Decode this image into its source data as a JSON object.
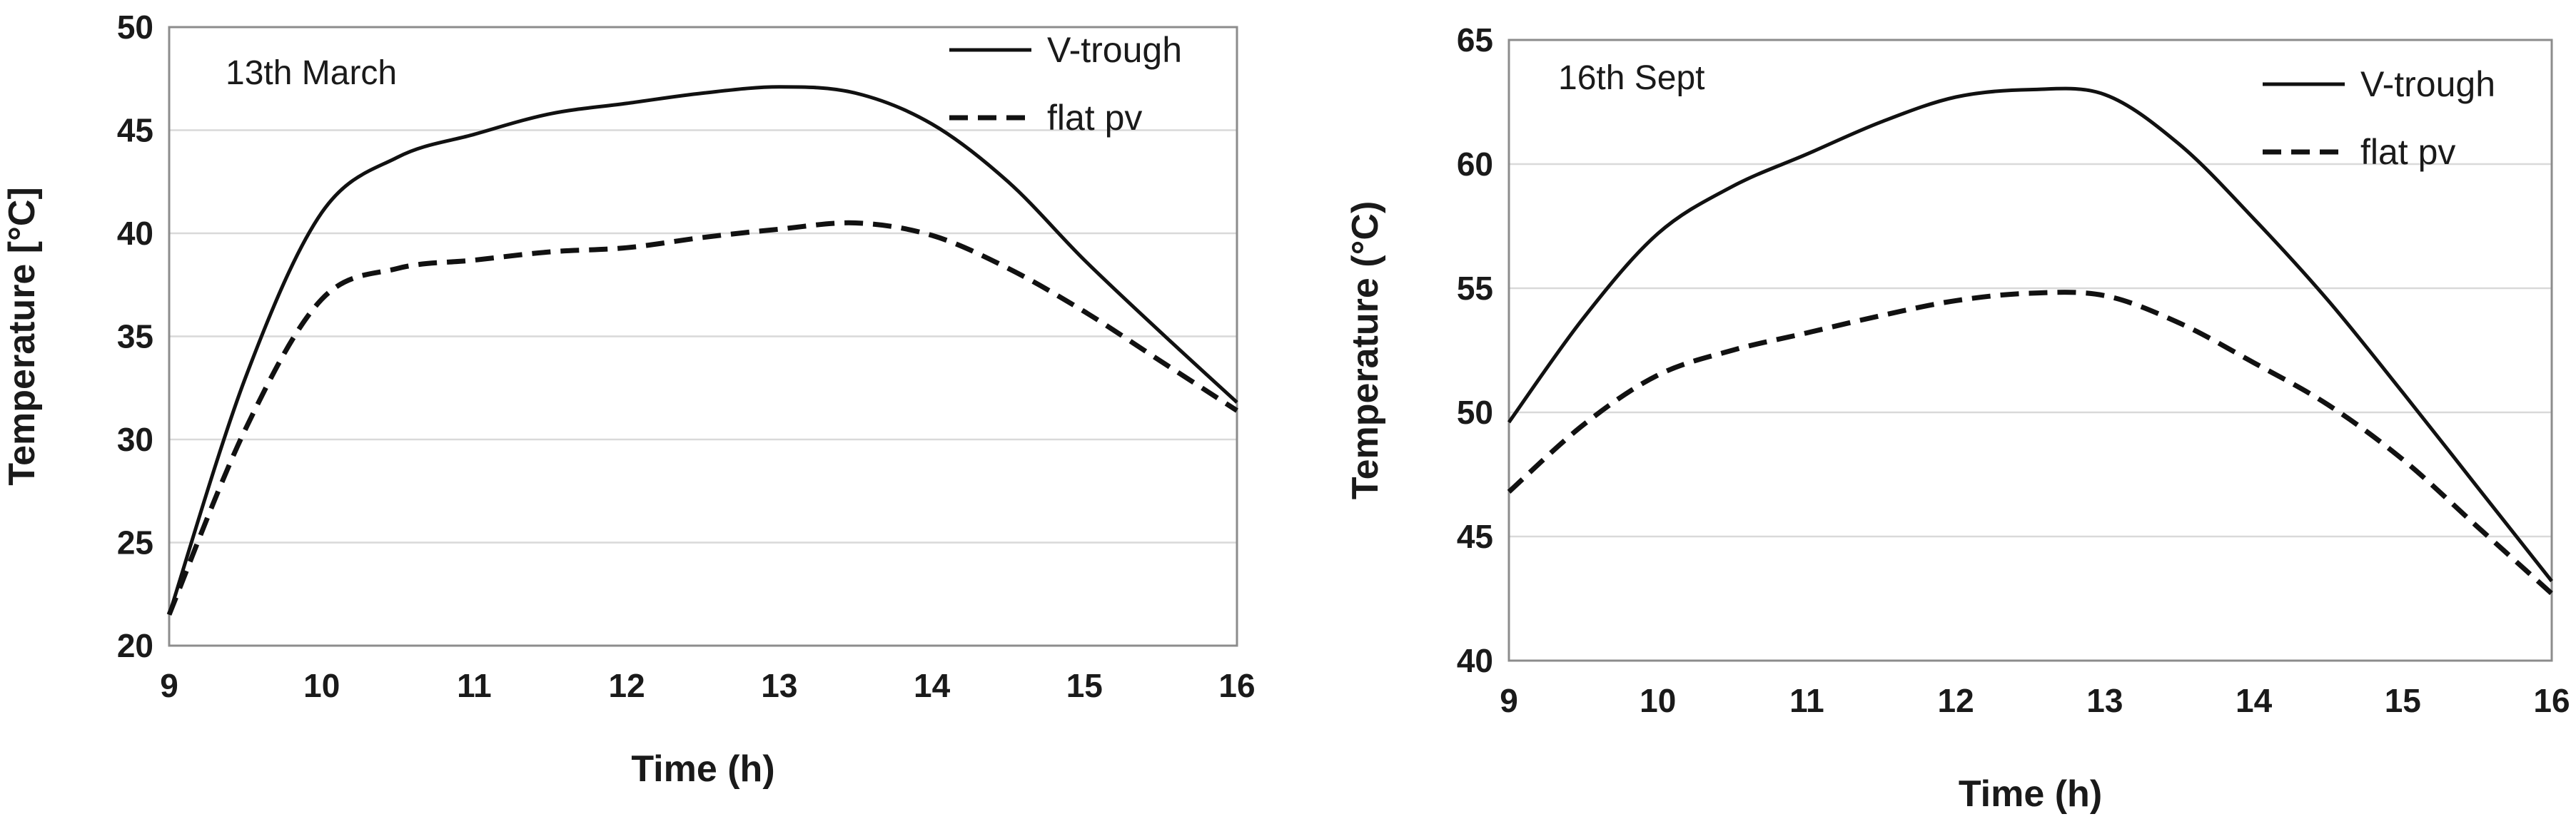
{
  "chart_data": [
    {
      "type": "line",
      "annotation": "13th March",
      "xlabel": "Time (h)",
      "ylabel": "Temperature [°C]",
      "xlim": [
        9,
        16
      ],
      "ylim": [
        20,
        50
      ],
      "xticks": [
        9,
        10,
        11,
        12,
        13,
        14,
        15,
        16
      ],
      "yticks": [
        20,
        25,
        30,
        35,
        40,
        45,
        50
      ],
      "grid": "horizontal",
      "legend_position": "top-right",
      "series": [
        {
          "name": "V-trough",
          "style": "solid",
          "x": [
            9,
            9.5,
            10,
            10.5,
            11,
            11.5,
            12,
            12.5,
            13,
            13.5,
            14,
            14.5,
            15,
            15.5,
            16
          ],
          "y": [
            21.5,
            33,
            41,
            43.7,
            44.8,
            45.8,
            46.3,
            46.8,
            47.1,
            46.8,
            45.3,
            42.5,
            38.7,
            35.2,
            31.8
          ]
        },
        {
          "name": "flat pv",
          "style": "dashed",
          "x": [
            9,
            9.5,
            10,
            10.5,
            11,
            11.5,
            12,
            12.5,
            13,
            13.5,
            14,
            14.5,
            15,
            15.5,
            16
          ],
          "y": [
            21.5,
            30.5,
            36.8,
            38.3,
            38.7,
            39.1,
            39.3,
            39.8,
            40.2,
            40.5,
            39.9,
            38.3,
            36.2,
            33.8,
            31.4
          ]
        }
      ]
    },
    {
      "type": "line",
      "annotation": "16th Sept",
      "xlabel": "Time (h)",
      "ylabel": "Temperature (°C)",
      "xlim": [
        9,
        16
      ],
      "ylim": [
        40,
        65
      ],
      "xticks": [
        9,
        10,
        11,
        12,
        13,
        14,
        15,
        16
      ],
      "yticks": [
        40,
        45,
        50,
        55,
        60,
        65
      ],
      "grid": "horizontal",
      "legend_position": "top-right",
      "series": [
        {
          "name": "V-trough",
          "style": "solid",
          "x": [
            9,
            9.5,
            10,
            10.5,
            11,
            11.5,
            12,
            12.5,
            13,
            13.5,
            14,
            14.5,
            15,
            15.5,
            16
          ],
          "y": [
            49.6,
            53.8,
            57.2,
            59.1,
            60.4,
            61.7,
            62.7,
            63.0,
            62.8,
            60.8,
            57.8,
            54.5,
            50.8,
            47.0,
            43.2
          ]
        },
        {
          "name": "flat pv",
          "style": "dashed",
          "x": [
            9,
            9.5,
            10,
            10.5,
            11,
            11.5,
            12,
            12.5,
            13,
            13.5,
            14,
            14.5,
            15,
            15.5,
            16
          ],
          "y": [
            46.8,
            49.5,
            51.5,
            52.5,
            53.2,
            53.9,
            54.5,
            54.8,
            54.7,
            53.6,
            52.0,
            50.3,
            48.1,
            45.4,
            42.7
          ]
        }
      ]
    }
  ]
}
